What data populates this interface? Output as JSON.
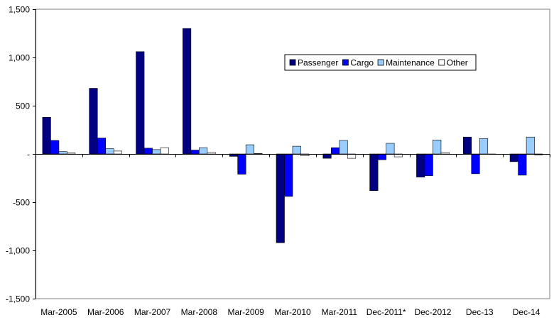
{
  "chart_data": {
    "type": "bar",
    "categories": [
      "Mar-2005",
      "Mar-2006",
      "Mar-2007",
      "Mar-2008",
      "Mar-2009",
      "Mar-2010",
      "Mar-2011",
      "Dec-2011*",
      "Dec-2012",
      "Dec-13",
      "Dec-14"
    ],
    "series": [
      {
        "name": "Passenger",
        "color": "#000080",
        "values": [
          380,
          680,
          1060,
          1300,
          -25,
          -920,
          -45,
          -380,
          -240,
          175,
          -80
        ]
      },
      {
        "name": "Cargo",
        "color": "#0000FF",
        "values": [
          140,
          165,
          60,
          40,
          -210,
          -440,
          65,
          -60,
          -225,
          -205,
          -220
        ]
      },
      {
        "name": "Maintenance",
        "color": "#99CCFF",
        "values": [
          25,
          55,
          45,
          65,
          95,
          80,
          140,
          110,
          145,
          160,
          175
        ]
      },
      {
        "name": "Other",
        "color": "#FFFFFF",
        "values": [
          10,
          30,
          65,
          15,
          5,
          -20,
          -45,
          -30,
          15,
          0,
          -10
        ]
      }
    ],
    "ylim": [
      -1500,
      1500
    ],
    "yticks": [
      -1500,
      -1000,
      -500,
      0,
      500,
      1000,
      1500
    ],
    "ytick_labels": [
      "-1,500",
      "-1,000",
      "-500",
      "-",
      "500",
      "1,000",
      "1,500"
    ],
    "legend_position": "upper-middle",
    "grid": false,
    "title": "",
    "xlabel": "",
    "ylabel": ""
  }
}
